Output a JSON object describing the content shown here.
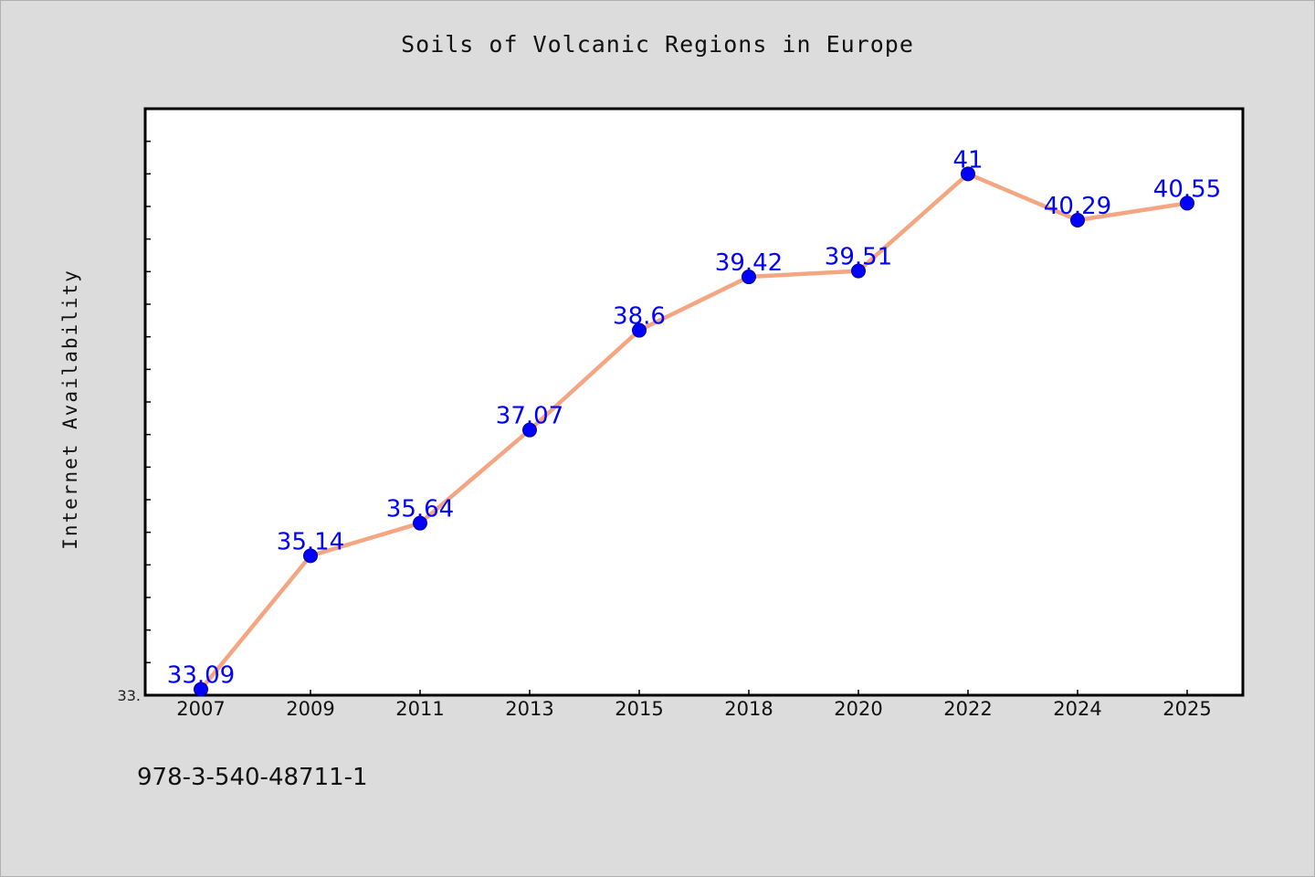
{
  "chart_data": {
    "type": "line",
    "title": "Soils of Volcanic Regions in Europe",
    "xlabel": "",
    "ylabel": "Internet Availability",
    "categories": [
      "2007",
      "2009",
      "2011",
      "2013",
      "2015",
      "2018",
      "2020",
      "2022",
      "2024",
      "2025"
    ],
    "series": [
      {
        "values": [
          33.09,
          35.14,
          35.64,
          37.07,
          38.6,
          39.42,
          39.51,
          41,
          40.29,
          40.55
        ],
        "labels": [
          "33.09",
          "35.14",
          "35.64",
          "37.07",
          "38.6",
          "39.42",
          "39.51",
          "41",
          "40.29",
          "40.55"
        ]
      }
    ],
    "ylim": [
      33,
      42
    ],
    "y_tick_label": "33.",
    "grid": false,
    "legend": "none",
    "colors": {
      "line": "#f4a582",
      "marker": "#0000ff",
      "label": "#0000ff",
      "plot_background": "#ffffff",
      "page_background": "#dcdcdc"
    }
  },
  "footer": {
    "identifier": "978-3-540-48711-1"
  }
}
